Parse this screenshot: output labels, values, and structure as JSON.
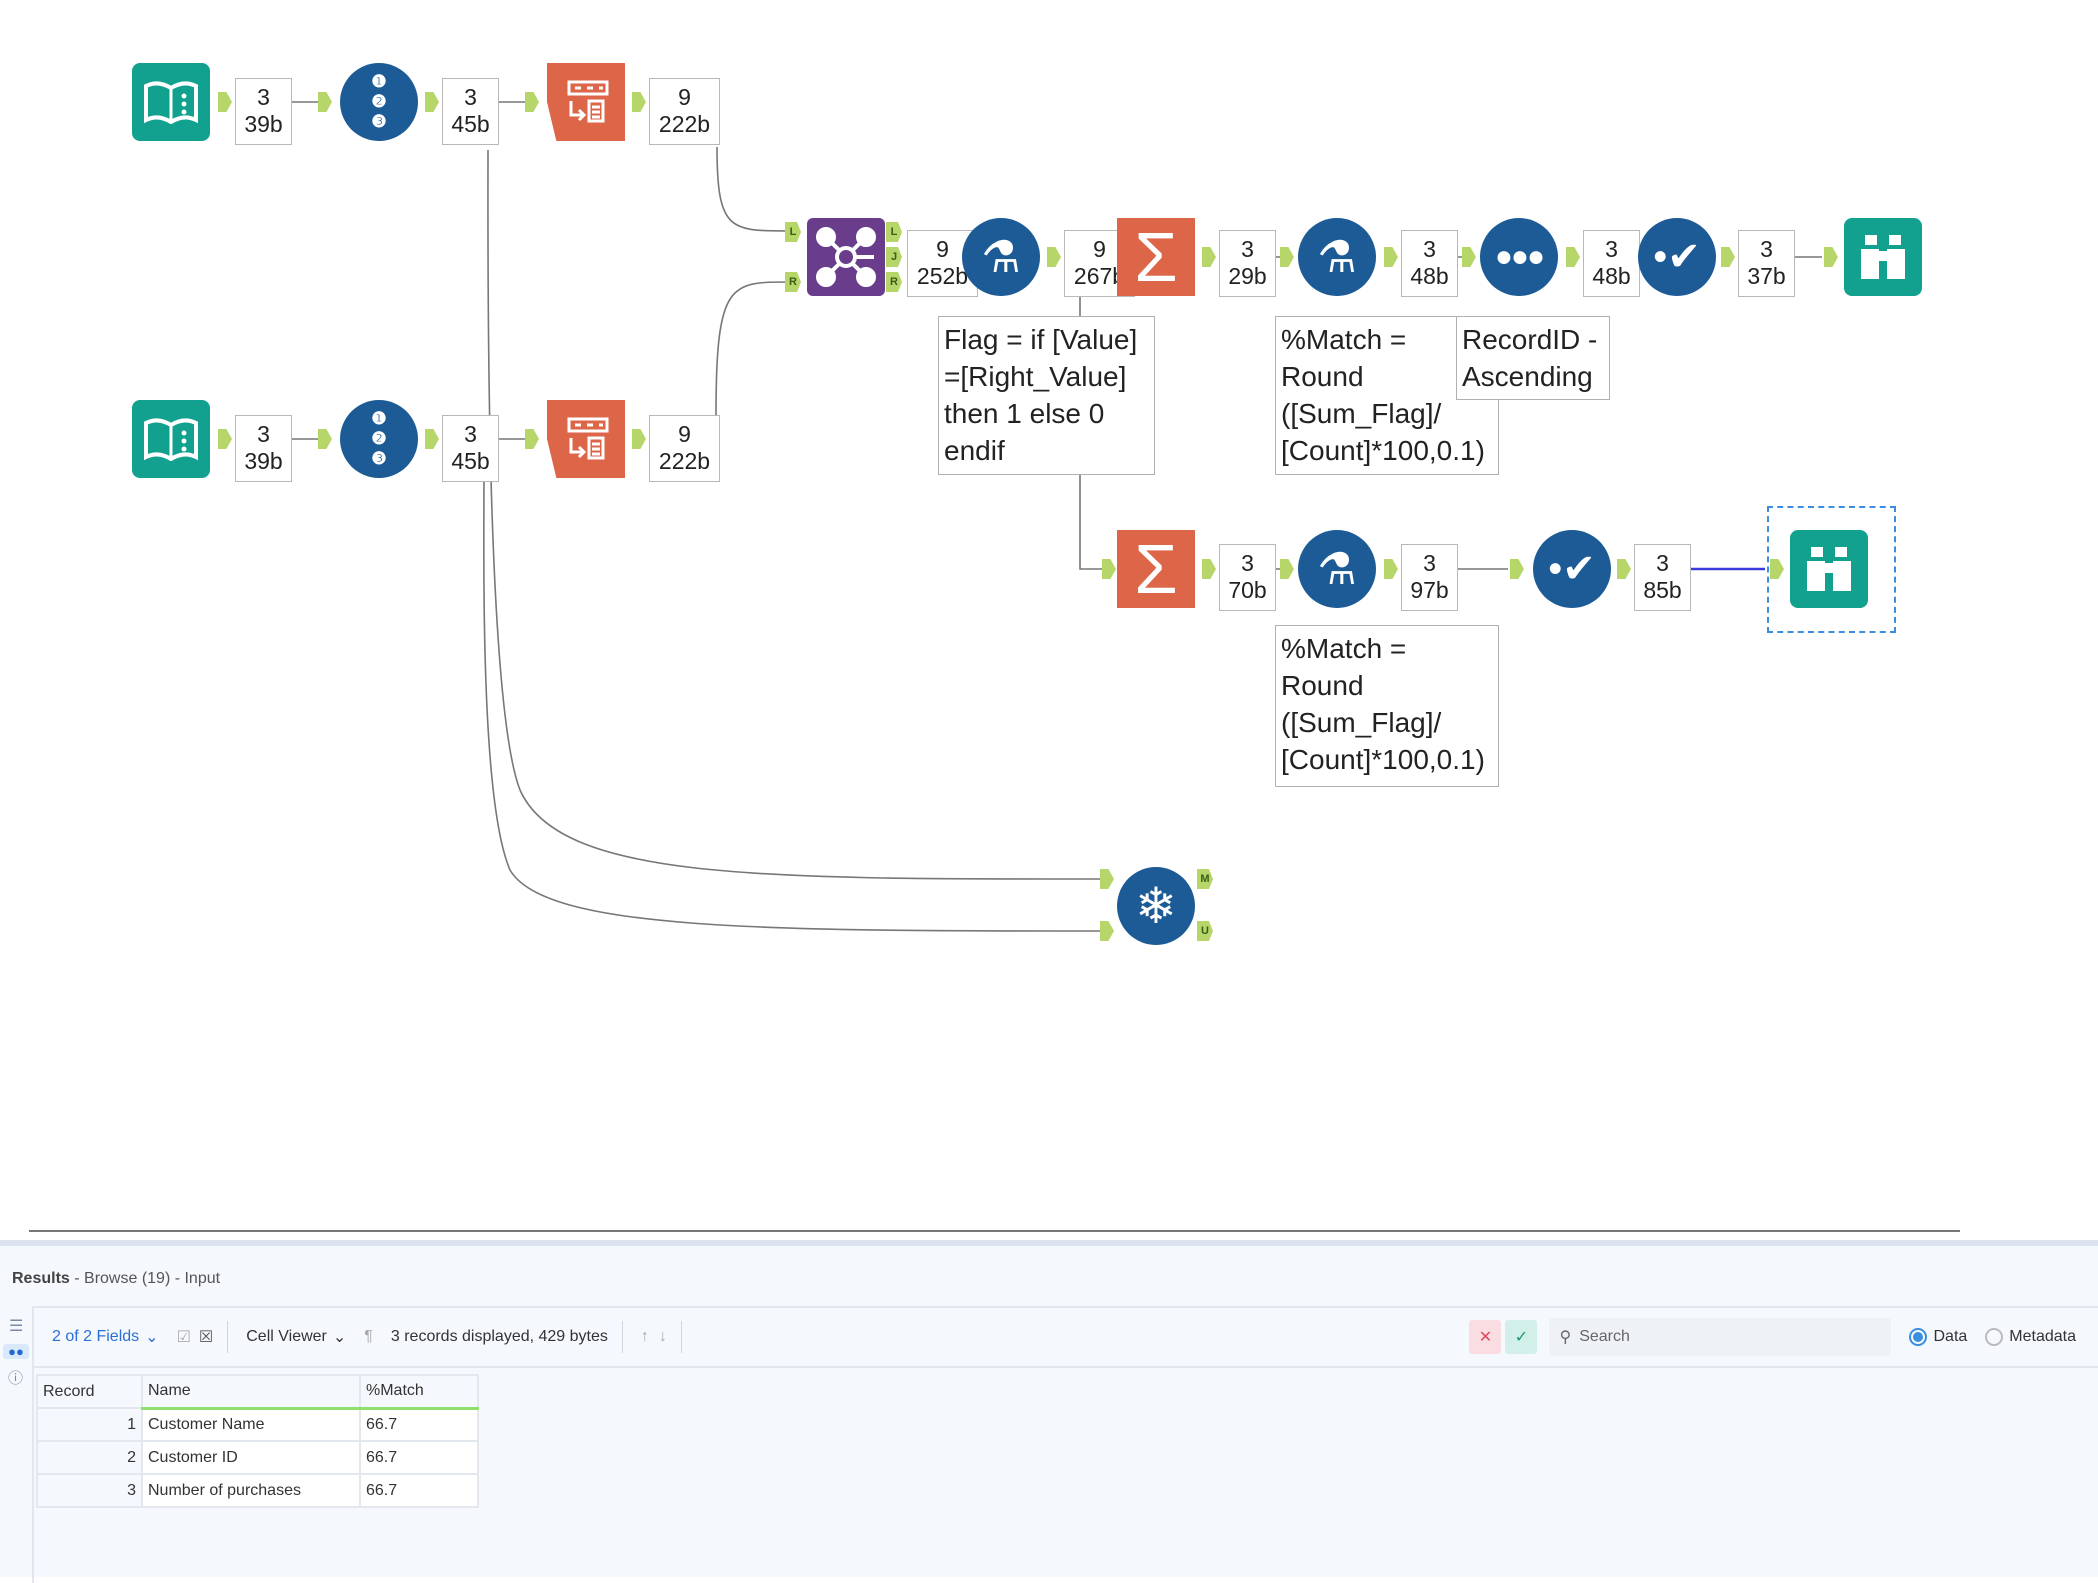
{
  "workflow": {
    "row1": {
      "b1": [
        "3",
        "39b"
      ],
      "b2": [
        "3",
        "45b"
      ],
      "b3": [
        "9",
        "222b"
      ]
    },
    "row2": {
      "b1": [
        "3",
        "39b"
      ],
      "b2": [
        "3",
        "45b"
      ],
      "b3": [
        "9",
        "222b"
      ]
    },
    "main": {
      "join_out": [
        "9",
        "252b"
      ],
      "formula_out": [
        "9",
        "267b"
      ],
      "sum_out": [
        "3",
        "29b"
      ],
      "formula2_out": [
        "3",
        "48b"
      ],
      "sample_out": [
        "3",
        "48b"
      ],
      "sort_out": [
        "3",
        "37b"
      ]
    },
    "branch": {
      "sum_out": [
        "3",
        "70b"
      ],
      "formula_out": [
        "3",
        "97b"
      ],
      "sort_out": [
        "3",
        "85b"
      ]
    },
    "join_tags": {
      "L": "L",
      "R": "R",
      "J": "J"
    },
    "union_tags": {
      "M": "M",
      "U": "U"
    },
    "notes": {
      "flag": "Flag = if [Value]\n=[Right_Value]\nthen 1 else 0\nendif",
      "match1": "%Match =\nRound\n([Sum_Flag]/\n[Count]*100,0.1)",
      "recordid": "RecordID -\nAscending",
      "match2": "%Match =\nRound\n([Sum_Flag]/\n[Count]*100,0.1)"
    },
    "icons": [
      "input-data-icon",
      "record-id-icon",
      "text-to-columns-icon",
      "join-icon",
      "formula-icon",
      "summarize-icon",
      "sample-icon",
      "sort-icon",
      "browse-icon",
      "join-multiple-icon"
    ],
    "colors": {
      "teal": "#12a08f",
      "blue": "#1d5b96",
      "orange": "#dd6548",
      "purple": "#6a3d8c",
      "anchor": "#b6d66a"
    }
  },
  "results": {
    "title": "Results",
    "subtitle": " - Browse (19) - Input",
    "fields": "2 of 2 Fields",
    "viewer": "Cell Viewer",
    "summary": "3 records displayed, 429 bytes",
    "search_placeholder": "Search",
    "radio_data": "Data",
    "radio_metadata": "Metadata",
    "selected_view": "Data",
    "columns": [
      "Record",
      "Name",
      "%Match"
    ],
    "rows": [
      [
        "1",
        "Customer Name",
        "66.7"
      ],
      [
        "2",
        "Customer ID",
        "66.7"
      ],
      [
        "3",
        "Number of purchases",
        "66.7"
      ]
    ]
  }
}
